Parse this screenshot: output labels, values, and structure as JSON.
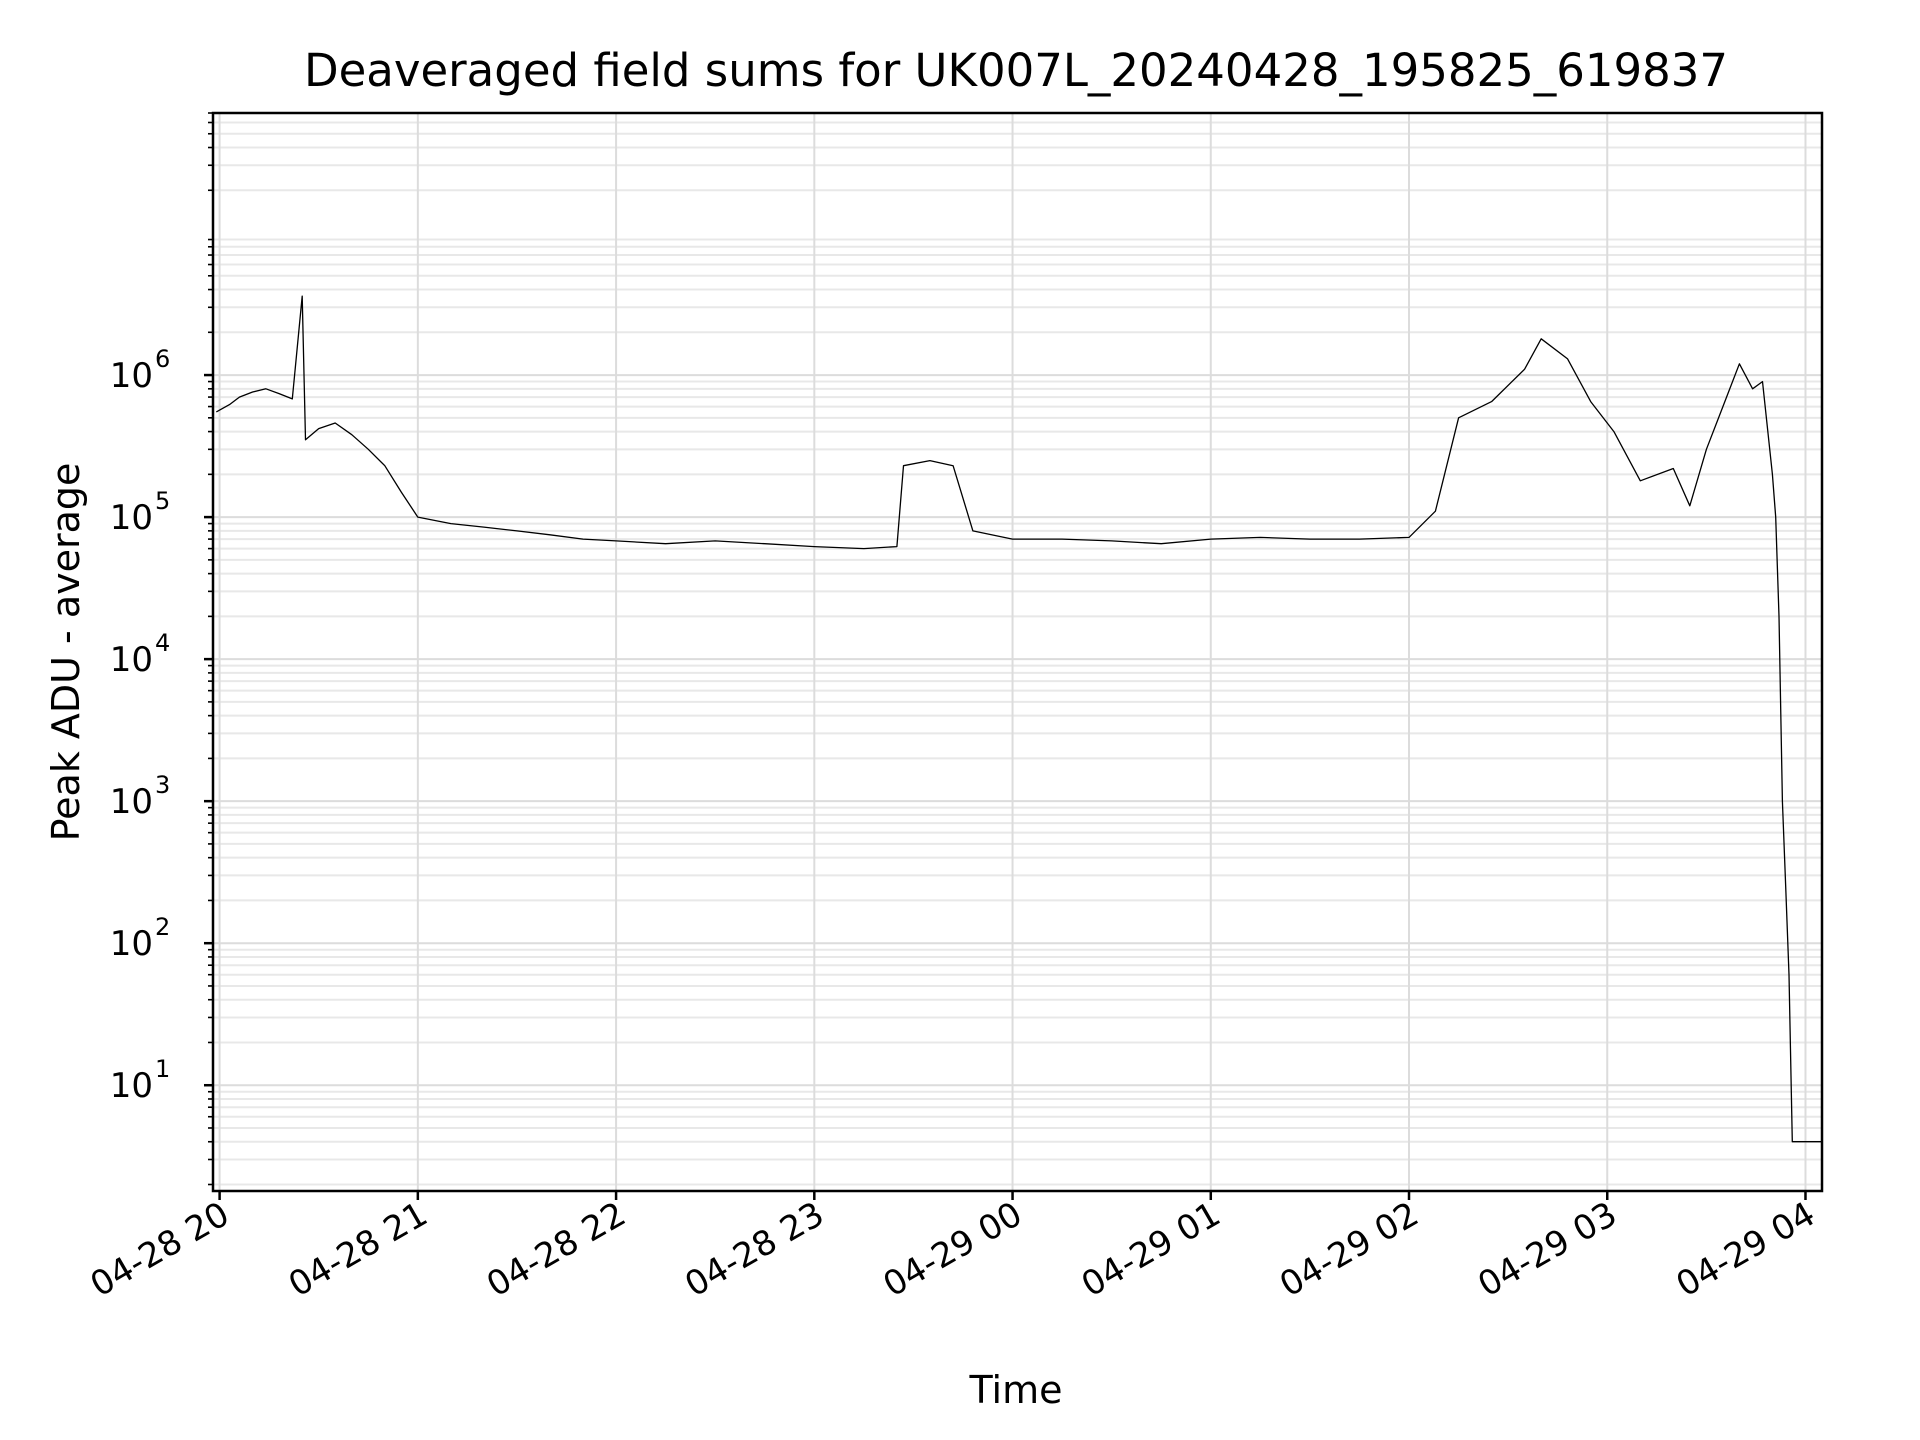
{
  "chart_data": {
    "type": "line",
    "title": "Deaveraged field sums for UK007L_20240428_195825_619837",
    "xlabel": "Time",
    "ylabel": "Peak ADU - average",
    "yscale": "log",
    "ylim": [
      1.8,
      70000000
    ],
    "xlim": [
      "2024-04-28 19:58",
      "2024-04-29 04:05"
    ],
    "grid": true,
    "x_ticks": [
      {
        "value": "2024-04-28 20:00",
        "label": "04-28 20"
      },
      {
        "value": "2024-04-28 21:00",
        "label": "04-28 21"
      },
      {
        "value": "2024-04-28 22:00",
        "label": "04-28 22"
      },
      {
        "value": "2024-04-28 23:00",
        "label": "04-28 23"
      },
      {
        "value": "2024-04-29 00:00",
        "label": "04-29 00"
      },
      {
        "value": "2024-04-29 01:00",
        "label": "04-29 01"
      },
      {
        "value": "2024-04-29 02:00",
        "label": "04-29 02"
      },
      {
        "value": "2024-04-29 03:00",
        "label": "04-29 03"
      },
      {
        "value": "2024-04-29 04:00",
        "label": "04-29 04"
      }
    ],
    "y_ticks": [
      {
        "value": 10,
        "base": "10",
        "exp": "1"
      },
      {
        "value": 100,
        "base": "10",
        "exp": "2"
      },
      {
        "value": 1000,
        "base": "10",
        "exp": "3"
      },
      {
        "value": 10000,
        "base": "10",
        "exp": "4"
      },
      {
        "value": 100000,
        "base": "10",
        "exp": "5"
      },
      {
        "value": 1000000,
        "base": "10",
        "exp": "6"
      }
    ],
    "series": [
      {
        "color": "#000000",
        "points": [
          [
            "2024-04-28 19:59",
            550000
          ],
          [
            "2024-04-28 20:03",
            620000
          ],
          [
            "2024-04-28 20:06",
            700000
          ],
          [
            "2024-04-28 20:10",
            760000
          ],
          [
            "2024-04-28 20:14",
            800000
          ],
          [
            "2024-04-28 20:18",
            740000
          ],
          [
            "2024-04-28 20:22",
            680000
          ],
          [
            "2024-04-28 20:25",
            3600000
          ],
          [
            "2024-04-28 20:26",
            350000
          ],
          [
            "2024-04-28 20:30",
            420000
          ],
          [
            "2024-04-28 20:35",
            460000
          ],
          [
            "2024-04-28 20:40",
            380000
          ],
          [
            "2024-04-28 20:45",
            300000
          ],
          [
            "2024-04-28 20:50",
            230000
          ],
          [
            "2024-04-28 20:55",
            150000
          ],
          [
            "2024-04-28 21:00",
            100000
          ],
          [
            "2024-04-28 21:10",
            90000
          ],
          [
            "2024-04-28 21:20",
            85000
          ],
          [
            "2024-04-28 21:30",
            80000
          ],
          [
            "2024-04-28 21:40",
            75000
          ],
          [
            "2024-04-28 21:50",
            70000
          ],
          [
            "2024-04-28 22:00",
            68000
          ],
          [
            "2024-04-28 22:15",
            65000
          ],
          [
            "2024-04-28 22:30",
            68000
          ],
          [
            "2024-04-28 22:45",
            65000
          ],
          [
            "2024-04-28 23:00",
            62000
          ],
          [
            "2024-04-28 23:15",
            60000
          ],
          [
            "2024-04-28 23:25",
            62000
          ],
          [
            "2024-04-28 23:27",
            230000
          ],
          [
            "2024-04-28 23:35",
            250000
          ],
          [
            "2024-04-28 23:42",
            230000
          ],
          [
            "2024-04-28 23:48",
            80000
          ],
          [
            "2024-04-29 00:00",
            70000
          ],
          [
            "2024-04-29 00:15",
            70000
          ],
          [
            "2024-04-29 00:30",
            68000
          ],
          [
            "2024-04-29 00:45",
            65000
          ],
          [
            "2024-04-29 01:00",
            70000
          ],
          [
            "2024-04-29 01:15",
            72000
          ],
          [
            "2024-04-29 01:30",
            70000
          ],
          [
            "2024-04-29 01:45",
            70000
          ],
          [
            "2024-04-29 02:00",
            72000
          ],
          [
            "2024-04-29 02:08",
            110000
          ],
          [
            "2024-04-29 02:15",
            500000
          ],
          [
            "2024-04-29 02:25",
            650000
          ],
          [
            "2024-04-29 02:35",
            1100000
          ],
          [
            "2024-04-29 02:40",
            1800000
          ],
          [
            "2024-04-29 02:48",
            1300000
          ],
          [
            "2024-04-29 02:55",
            650000
          ],
          [
            "2024-04-29 03:02",
            400000
          ],
          [
            "2024-04-29 03:10",
            180000
          ],
          [
            "2024-04-29 03:20",
            220000
          ],
          [
            "2024-04-29 03:25",
            120000
          ],
          [
            "2024-04-29 03:30",
            300000
          ],
          [
            "2024-04-29 03:35",
            600000
          ],
          [
            "2024-04-29 03:40",
            1200000
          ],
          [
            "2024-04-29 03:44",
            800000
          ],
          [
            "2024-04-29 03:47",
            900000
          ],
          [
            "2024-04-29 03:50",
            200000
          ],
          [
            "2024-04-29 03:51",
            100000
          ],
          [
            "2024-04-29 03:52",
            20000
          ],
          [
            "2024-04-29 03:53",
            1000
          ],
          [
            "2024-04-29 03:54",
            250
          ],
          [
            "2024-04-29 03:55",
            60
          ],
          [
            "2024-04-29 03:56",
            4
          ],
          [
            "2024-04-29 04:05",
            4
          ]
        ]
      }
    ]
  }
}
